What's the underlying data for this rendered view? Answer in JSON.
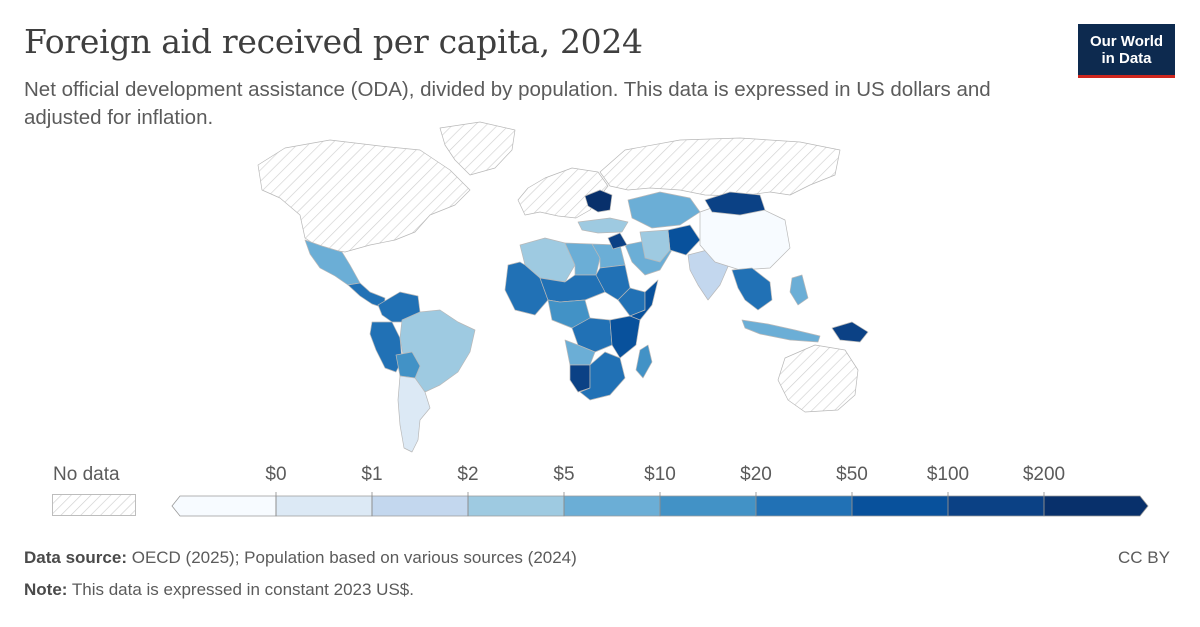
{
  "header": {
    "title": "Foreign aid received per capita, 2024",
    "subtitle": "Net official development assistance (ODA), divided by population. This data is expressed in US dollars and adjusted for inflation."
  },
  "logo": {
    "line1": "Our World",
    "line2": "in Data",
    "bg_color": "#0d2a4f",
    "accent_color": "#ce261e"
  },
  "legend": {
    "no_data_label": "No data",
    "ticks": [
      "$0",
      "$1",
      "$2",
      "$5",
      "$10",
      "$20",
      "$50",
      "$100",
      "$200"
    ],
    "bin_colors": [
      "#f7fbff",
      "#dce9f5",
      "#c3d7ee",
      "#9ecae1",
      "#6baed6",
      "#4292c6",
      "#2171b5",
      "#08519c",
      "#0b4185",
      "#08306b"
    ]
  },
  "regions": [
    {
      "name": "North America",
      "category": "no-data"
    },
    {
      "name": "Greenland",
      "category": "no-data"
    },
    {
      "name": "Russia",
      "category": "no-data"
    },
    {
      "name": "Europe",
      "category": "no-data"
    },
    {
      "name": "Australia",
      "category": "no-data"
    },
    {
      "name": "Mexico",
      "category": 4
    },
    {
      "name": "Central America",
      "category": 6
    },
    {
      "name": "Colombia",
      "category": 6
    },
    {
      "name": "Peru",
      "category": 6
    },
    {
      "name": "Brazil",
      "category": 3
    },
    {
      "name": "Bolivia",
      "category": 5
    },
    {
      "name": "Argentina",
      "category": 1
    },
    {
      "name": "Algeria",
      "category": 3
    },
    {
      "name": "Libya",
      "category": 4
    },
    {
      "name": "Egypt",
      "category": 4
    },
    {
      "name": "West Africa",
      "category": 6
    },
    {
      "name": "Sahel",
      "category": 6
    },
    {
      "name": "Sudan",
      "category": 6
    },
    {
      "name": "Ethiopia",
      "category": 6
    },
    {
      "name": "Somalia",
      "category": 7
    },
    {
      "name": "Central Africa",
      "category": 5
    },
    {
      "name": "DR Congo",
      "category": 6
    },
    {
      "name": "East Africa",
      "category": 7
    },
    {
      "name": "Angola",
      "category": 4
    },
    {
      "name": "Namibia",
      "category": 8
    },
    {
      "name": "Southern Africa",
      "category": 6
    },
    {
      "name": "Madagascar",
      "category": 5
    },
    {
      "name": "Middle East",
      "category": 4
    },
    {
      "name": "Syria",
      "category": 8
    },
    {
      "name": "Ukraine",
      "category": 9
    },
    {
      "name": "Turkey",
      "category": 3
    },
    {
      "name": "Central Asia",
      "category": 4
    },
    {
      "name": "Afghanistan",
      "category": 7
    },
    {
      "name": "Iran",
      "category": 3
    },
    {
      "name": "India",
      "category": 2
    },
    {
      "name": "China",
      "category": 0
    },
    {
      "name": "Mongolia",
      "category": 8
    },
    {
      "name": "Southeast Asia",
      "category": 6
    },
    {
      "name": "Indonesia",
      "category": 4
    },
    {
      "name": "Papua New Guinea",
      "category": 8
    },
    {
      "name": "Philippines",
      "category": 4
    }
  ],
  "footer": {
    "source_label": "Data source:",
    "source_text": "OECD (2025); Population based on various sources (2024)",
    "note_label": "Note:",
    "note_text": "This data is expressed in constant 2023 US$.",
    "license": "CC BY"
  }
}
